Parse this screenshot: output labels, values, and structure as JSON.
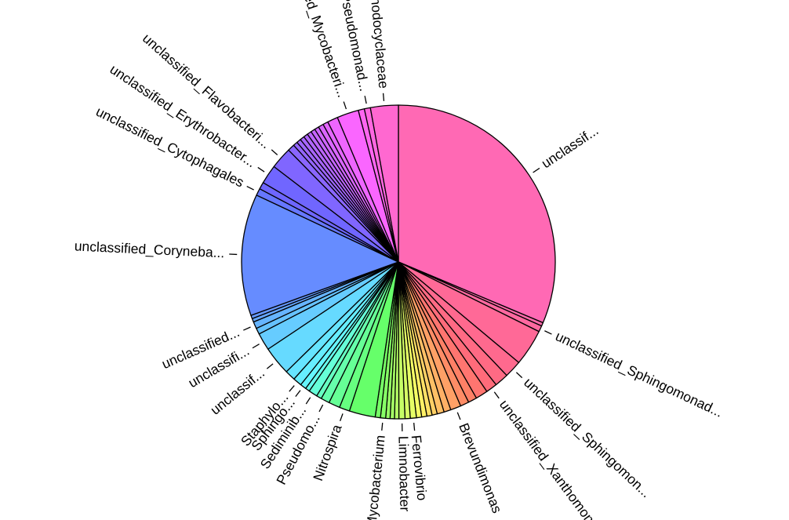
{
  "chart_data": {
    "type": "pie",
    "title": "",
    "start_angle_deg": 90,
    "direction": "clockwise",
    "slices": [
      {
        "label": "unclassif...",
        "value": 35.0,
        "color": "#ff69b4"
      },
      {
        "label": "",
        "value": 0.4,
        "color": "#ff69aa"
      },
      {
        "label": "unclassified_Sphingomonad...",
        "value": 0.7,
        "color": "#ff69a0"
      },
      {
        "label": "",
        "value": 4.2,
        "color": "#ff6997"
      },
      {
        "label": "unclassified_Sphingomon...",
        "value": 2.0,
        "color": "#ff698e"
      },
      {
        "label": "",
        "value": 1.6,
        "color": "#ff6a84"
      },
      {
        "label": "unclassified_Xanthomon...",
        "value": 1.3,
        "color": "#ff6b7a"
      },
      {
        "label": "",
        "value": 1.4,
        "color": "#ff7570"
      },
      {
        "label": "",
        "value": 1.0,
        "color": "#ff8066"
      },
      {
        "label": "",
        "value": 1.0,
        "color": "#ff8c66"
      },
      {
        "label": "Brevundimonas",
        "value": 1.2,
        "color": "#ffa066"
      },
      {
        "label": "",
        "value": 0.8,
        "color": "#ffb066"
      },
      {
        "label": "",
        "value": 0.8,
        "color": "#ffc066"
      },
      {
        "label": "",
        "value": 0.6,
        "color": "#ffd066"
      },
      {
        "label": "",
        "value": 0.6,
        "color": "#ffe066"
      },
      {
        "label": "",
        "value": 0.6,
        "color": "#fff066"
      },
      {
        "label": "",
        "value": 0.6,
        "color": "#f6ff66"
      },
      {
        "label": "Ferrovibrio",
        "value": 0.7,
        "color": "#e6ff66"
      },
      {
        "label": "",
        "value": 0.6,
        "color": "#d6ff66"
      },
      {
        "label": "Limnobacter",
        "value": 0.7,
        "color": "#c6ff66"
      },
      {
        "label": "",
        "value": 0.5,
        "color": "#b6ff66"
      },
      {
        "label": "",
        "value": 0.5,
        "color": "#a6ff66"
      },
      {
        "label": "",
        "value": 0.5,
        "color": "#96ff66"
      },
      {
        "label": "Mycobacterium",
        "value": 0.6,
        "color": "#86ff66"
      },
      {
        "label": "",
        "value": 0.6,
        "color": "#76ff66"
      },
      {
        "label": "",
        "value": 3.0,
        "color": "#66ff6a"
      },
      {
        "label": "Nitrospira",
        "value": 1.2,
        "color": "#66ff80"
      },
      {
        "label": "",
        "value": 1.3,
        "color": "#66ff96"
      },
      {
        "label": "Pseudomo...",
        "value": 1.0,
        "color": "#66ffac"
      },
      {
        "label": "",
        "value": 0.6,
        "color": "#66ffc2"
      },
      {
        "label": "Sediminib...",
        "value": 1.0,
        "color": "#66ffd8"
      },
      {
        "label": "",
        "value": 0.5,
        "color": "#66ffee"
      },
      {
        "label": "Sphingo...",
        "value": 0.7,
        "color": "#66f6ff"
      },
      {
        "label": "Staphylo...",
        "value": 1.0,
        "color": "#66eeff"
      },
      {
        "label": "",
        "value": 1.2,
        "color": "#66e4ff"
      },
      {
        "label": "unclassif...",
        "value": 3.3,
        "color": "#66daff"
      },
      {
        "label": "unclassifi...",
        "value": 2.0,
        "color": "#66ccff"
      },
      {
        "label": "",
        "value": 0.7,
        "color": "#66c2ff"
      },
      {
        "label": "unclassified...",
        "value": 0.8,
        "color": "#66b4ff"
      },
      {
        "label": "",
        "value": 0.4,
        "color": "#66a6ff"
      },
      {
        "label": "",
        "value": 0.4,
        "color": "#6698ff"
      },
      {
        "label": "unclassified_Coryneba...",
        "value": 14.0,
        "color": "#668cff"
      },
      {
        "label": "unclassified_Cytophagales",
        "value": 0.8,
        "color": "#6677ff"
      },
      {
        "label": "",
        "value": 0.8,
        "color": "#6e66ff"
      },
      {
        "label": "unclassified_Erythrobacter...",
        "value": 2.2,
        "color": "#7066ff"
      },
      {
        "label": "unclassified_Flavobacteri...",
        "value": 2.5,
        "color": "#8066ff"
      },
      {
        "label": "",
        "value": 0.8,
        "color": "#8a66ff"
      },
      {
        "label": "",
        "value": 0.5,
        "color": "#9466ff"
      },
      {
        "label": "",
        "value": 0.5,
        "color": "#9e66ff"
      },
      {
        "label": "",
        "value": 0.5,
        "color": "#a866ff"
      },
      {
        "label": "",
        "value": 0.5,
        "color": "#b266ff"
      },
      {
        "label": "",
        "value": 0.5,
        "color": "#bc66ff"
      },
      {
        "label": "",
        "value": 0.5,
        "color": "#c666ff"
      },
      {
        "label": "",
        "value": 0.5,
        "color": "#d066ff"
      },
      {
        "label": "",
        "value": 0.6,
        "color": "#da66ff"
      },
      {
        "label": "",
        "value": 0.6,
        "color": "#e466ff"
      },
      {
        "label": "",
        "value": 1.2,
        "color": "#ee66ff"
      },
      {
        "label": "unclassified_Mycobacteri...",
        "value": 2.5,
        "color": "#fa66ff"
      },
      {
        "label": "",
        "value": 0.7,
        "color": "#ff66f0"
      },
      {
        "label": "unclassified_Pseudomonad...",
        "value": 0.7,
        "color": "#ff67e0"
      },
      {
        "label": "unclassified_Rhodocyclaceae",
        "value": 3.2,
        "color": "#ff68d0"
      }
    ]
  }
}
